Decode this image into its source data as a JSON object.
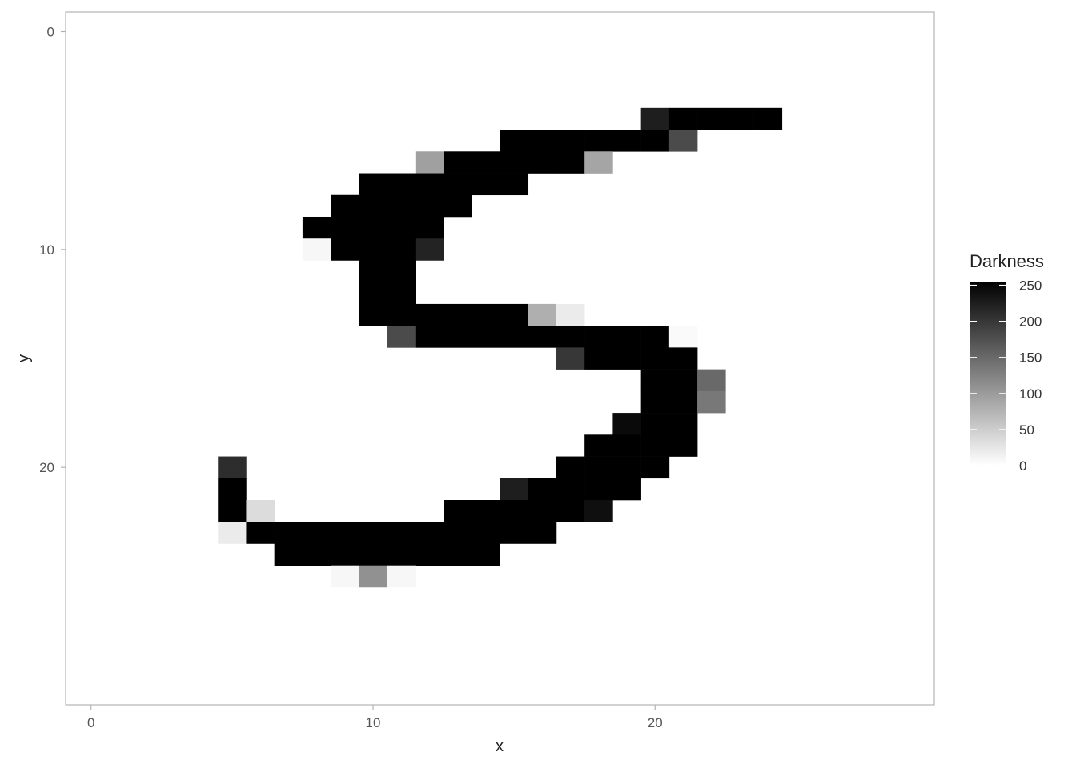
{
  "chart_data": {
    "type": "heatmap",
    "title": "",
    "xlabel": "x",
    "ylabel": "y",
    "x_ticks": [
      0,
      10,
      20
    ],
    "y_ticks": [
      0,
      10,
      20
    ],
    "xlim": [
      -0.9,
      29.9
    ],
    "ylim": [
      30.9,
      -0.9
    ],
    "y_reversed": true,
    "grid": false,
    "legend": {
      "title": "Darkness",
      "position": "right",
      "ticks": [
        0,
        50,
        100,
        150,
        200,
        250
      ],
      "range": [
        0,
        255
      ],
      "low_color": "#ffffff",
      "high_color": "#000000"
    },
    "cells": [
      [
        20,
        4,
        225
      ],
      [
        21,
        4,
        255
      ],
      [
        22,
        4,
        255
      ],
      [
        23,
        4,
        255
      ],
      [
        24,
        4,
        255
      ],
      [
        15,
        5,
        255
      ],
      [
        16,
        5,
        255
      ],
      [
        17,
        5,
        255
      ],
      [
        18,
        5,
        255
      ],
      [
        19,
        5,
        255
      ],
      [
        20,
        5,
        255
      ],
      [
        21,
        5,
        180
      ],
      [
        12,
        6,
        95
      ],
      [
        13,
        6,
        255
      ],
      [
        14,
        6,
        255
      ],
      [
        15,
        6,
        255
      ],
      [
        16,
        6,
        255
      ],
      [
        17,
        6,
        255
      ],
      [
        18,
        6,
        90
      ],
      [
        10,
        7,
        255
      ],
      [
        11,
        7,
        255
      ],
      [
        12,
        7,
        255
      ],
      [
        13,
        7,
        255
      ],
      [
        14,
        7,
        255
      ],
      [
        15,
        7,
        255
      ],
      [
        9,
        8,
        255
      ],
      [
        10,
        8,
        255
      ],
      [
        11,
        8,
        255
      ],
      [
        12,
        8,
        255
      ],
      [
        13,
        8,
        255
      ],
      [
        8,
        9,
        255
      ],
      [
        9,
        9,
        255
      ],
      [
        10,
        9,
        255
      ],
      [
        11,
        9,
        255
      ],
      [
        12,
        9,
        255
      ],
      [
        8,
        10,
        8
      ],
      [
        9,
        10,
        255
      ],
      [
        10,
        10,
        255
      ],
      [
        11,
        10,
        255
      ],
      [
        12,
        10,
        220
      ],
      [
        10,
        11,
        255
      ],
      [
        11,
        11,
        255
      ],
      [
        10,
        12,
        255
      ],
      [
        11,
        12,
        255
      ],
      [
        10,
        13,
        255
      ],
      [
        11,
        13,
        255
      ],
      [
        12,
        13,
        255
      ],
      [
        13,
        13,
        255
      ],
      [
        14,
        13,
        255
      ],
      [
        15,
        13,
        255
      ],
      [
        16,
        13,
        80
      ],
      [
        17,
        13,
        20
      ],
      [
        11,
        14,
        180
      ],
      [
        12,
        14,
        255
      ],
      [
        13,
        14,
        255
      ],
      [
        14,
        14,
        255
      ],
      [
        15,
        14,
        255
      ],
      [
        16,
        14,
        255
      ],
      [
        17,
        14,
        255
      ],
      [
        18,
        14,
        255
      ],
      [
        19,
        14,
        255
      ],
      [
        20,
        14,
        255
      ],
      [
        21,
        14,
        5
      ],
      [
        17,
        15,
        200
      ],
      [
        18,
        15,
        255
      ],
      [
        19,
        15,
        255
      ],
      [
        20,
        15,
        255
      ],
      [
        21,
        15,
        255
      ],
      [
        20,
        16,
        255
      ],
      [
        21,
        16,
        255
      ],
      [
        22,
        16,
        150
      ],
      [
        20,
        17,
        255
      ],
      [
        21,
        17,
        255
      ],
      [
        22,
        17,
        135
      ],
      [
        19,
        18,
        245
      ],
      [
        20,
        18,
        255
      ],
      [
        21,
        18,
        255
      ],
      [
        18,
        19,
        255
      ],
      [
        19,
        19,
        255
      ],
      [
        20,
        19,
        255
      ],
      [
        21,
        19,
        255
      ],
      [
        5,
        20,
        210
      ],
      [
        17,
        20,
        255
      ],
      [
        18,
        20,
        255
      ],
      [
        19,
        20,
        255
      ],
      [
        20,
        20,
        255
      ],
      [
        5,
        21,
        255
      ],
      [
        15,
        21,
        225
      ],
      [
        16,
        21,
        255
      ],
      [
        17,
        21,
        255
      ],
      [
        18,
        21,
        255
      ],
      [
        19,
        21,
        255
      ],
      [
        5,
        22,
        255
      ],
      [
        6,
        22,
        35
      ],
      [
        13,
        22,
        255
      ],
      [
        14,
        22,
        255
      ],
      [
        15,
        22,
        255
      ],
      [
        16,
        22,
        255
      ],
      [
        17,
        22,
        255
      ],
      [
        18,
        22,
        240
      ],
      [
        5,
        23,
        20
      ],
      [
        6,
        23,
        255
      ],
      [
        7,
        23,
        255
      ],
      [
        8,
        23,
        255
      ],
      [
        9,
        23,
        255
      ],
      [
        10,
        23,
        255
      ],
      [
        11,
        23,
        255
      ],
      [
        12,
        23,
        255
      ],
      [
        13,
        23,
        255
      ],
      [
        14,
        23,
        255
      ],
      [
        15,
        23,
        255
      ],
      [
        16,
        23,
        255
      ],
      [
        7,
        24,
        255
      ],
      [
        8,
        24,
        255
      ],
      [
        9,
        24,
        255
      ],
      [
        10,
        24,
        255
      ],
      [
        11,
        24,
        255
      ],
      [
        12,
        24,
        255
      ],
      [
        13,
        24,
        255
      ],
      [
        14,
        24,
        255
      ],
      [
        9,
        25,
        8
      ],
      [
        10,
        25,
        110
      ],
      [
        11,
        25,
        8
      ]
    ]
  }
}
